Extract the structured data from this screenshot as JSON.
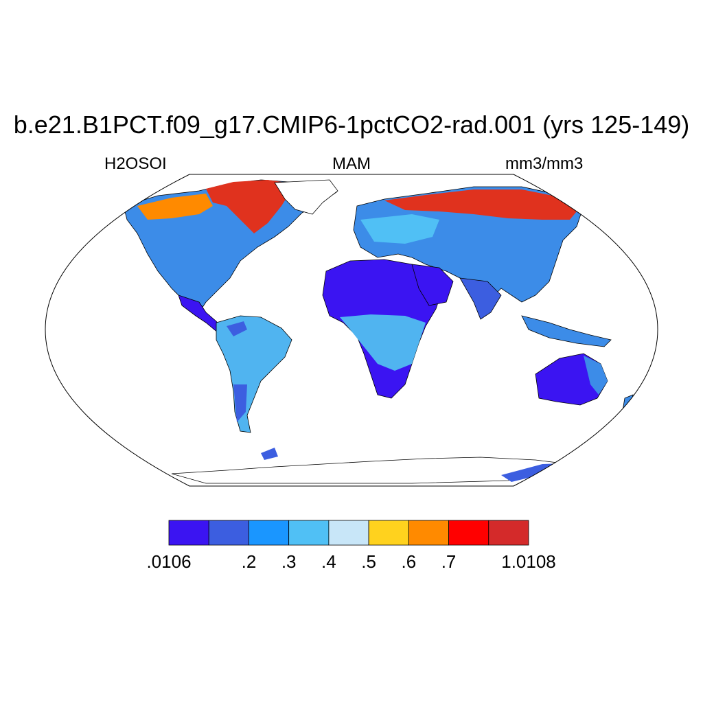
{
  "title": "b.e21.B1PCT.f09_g17.CMIP6-1pctCO2-rad.001 (yrs 125-149)",
  "left_label": "H2OSOI",
  "center_label": "MAM",
  "right_label": "mm3/mm3",
  "projection": "Robinson",
  "colorbar": {
    "colors": [
      "#3b14f2",
      "#3c5ee0",
      "#1a96ff",
      "#50c0f5",
      "#c8e6f8",
      "#ffd21e",
      "#ff8a00",
      "#ff0000",
      "#d42a2a"
    ],
    "labels": [
      ".0106",
      ".2",
      ".3",
      ".4",
      ".5",
      ".6",
      ".7",
      "1.0108"
    ]
  }
}
